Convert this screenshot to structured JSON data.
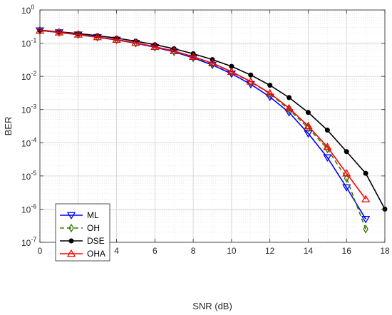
{
  "chart_data": {
    "type": "line",
    "title": "",
    "xlabel": "SNR (dB)",
    "ylabel": "BER",
    "xlim": [
      0,
      18
    ],
    "ylim": [
      1e-07,
      1
    ],
    "yscale": "log",
    "grid": true,
    "legend_position": "bottom-left",
    "x_ticks": [
      0,
      2,
      4,
      6,
      8,
      10,
      12,
      14,
      16,
      18
    ],
    "x_tick_labels": [
      "0",
      "2",
      "4",
      "6",
      "8",
      "10",
      "12",
      "14",
      "16",
      "18"
    ],
    "y_ticks": [
      1e-07,
      1e-06,
      1e-05,
      0.0001,
      0.001,
      0.01,
      0.1,
      1
    ],
    "y_tick_labels": [
      {
        "base": "10",
        "exp": "-7"
      },
      {
        "base": "10",
        "exp": "-6"
      },
      {
        "base": "10",
        "exp": "-5"
      },
      {
        "base": "10",
        "exp": "-4"
      },
      {
        "base": "10",
        "exp": "-3"
      },
      {
        "base": "10",
        "exp": "-2"
      },
      {
        "base": "10",
        "exp": "-1"
      },
      {
        "base": "10",
        "exp": "0"
      }
    ],
    "series": [
      {
        "name": "ML",
        "color": "#0000ff",
        "dash": "solid",
        "marker": "triangle-down",
        "x": [
          0,
          1,
          2,
          3,
          4,
          5,
          6,
          7,
          8,
          9,
          10,
          11,
          12,
          13,
          14,
          15,
          16,
          17
        ],
        "y": [
          0.24,
          0.21,
          0.18,
          0.15,
          0.125,
          0.1,
          0.075,
          0.055,
          0.036,
          0.022,
          0.012,
          0.0058,
          0.0024,
          0.00082,
          0.00019,
          3.6e-05,
          4.5e-06,
          5e-07
        ]
      },
      {
        "name": "OH",
        "color": "#3a7d00",
        "dash": "dashed",
        "marker": "diamond",
        "x": [
          0,
          1,
          2,
          3,
          4,
          5,
          6,
          7,
          8,
          9,
          10,
          11,
          12,
          13,
          14,
          15,
          16,
          17
        ],
        "y": [
          0.24,
          0.212,
          0.182,
          0.152,
          0.127,
          0.102,
          0.077,
          0.057,
          0.038,
          0.024,
          0.0135,
          0.0068,
          0.003,
          0.001,
          0.00028,
          6.5e-05,
          8.5e-06,
          2.5e-07
        ]
      },
      {
        "name": "DSE",
        "color": "#000000",
        "dash": "solid",
        "marker": "dot",
        "x": [
          0,
          1,
          2,
          3,
          4,
          5,
          6,
          7,
          8,
          9,
          10,
          11,
          12,
          13,
          14,
          15,
          16,
          17,
          18
        ],
        "y": [
          0.245,
          0.22,
          0.195,
          0.168,
          0.142,
          0.115,
          0.09,
          0.068,
          0.048,
          0.032,
          0.02,
          0.011,
          0.0054,
          0.0023,
          0.00082,
          0.00024,
          5.4e-05,
          1.2e-05,
          1e-06
        ]
      },
      {
        "name": "OHA",
        "color": "#ff0000",
        "dash": "solid",
        "marker": "triangle-up",
        "x": [
          0,
          1,
          2,
          3,
          4,
          5,
          6,
          7,
          8,
          9,
          10,
          11,
          12,
          13,
          14,
          15,
          16,
          17
        ],
        "y": [
          0.24,
          0.212,
          0.183,
          0.153,
          0.128,
          0.103,
          0.078,
          0.058,
          0.039,
          0.025,
          0.0138,
          0.007,
          0.0031,
          0.0011,
          0.00032,
          7.5e-05,
          1.2e-05,
          2e-06
        ]
      }
    ]
  }
}
